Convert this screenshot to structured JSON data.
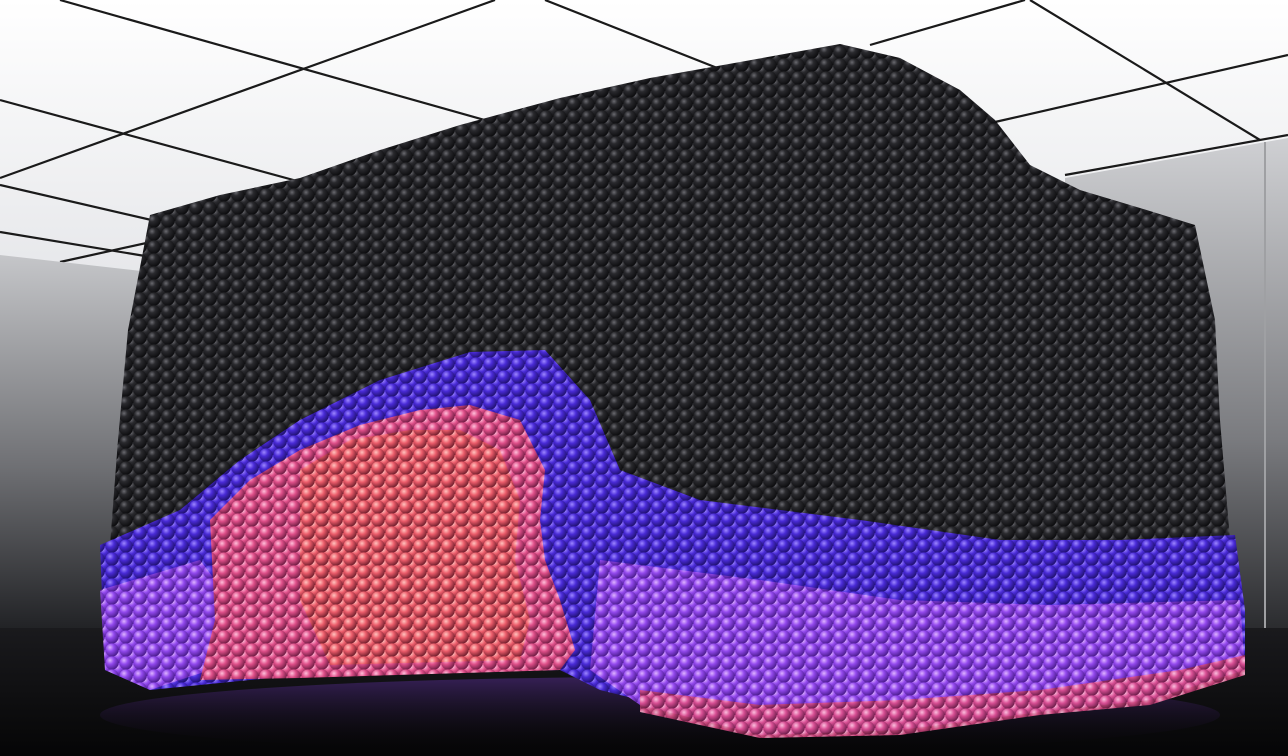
{
  "scene": {
    "subject": "particle-cube",
    "colors": {
      "ceiling": "#f2f2f4",
      "ceiling_grid": "#1a1a1a",
      "wall_light": "#b9babd",
      "wall_dark": "#2a2b2e",
      "floor": "#0b0b0d",
      "sphere_black": "#1a1a1c",
      "sphere_blue": "#4a2bd8",
      "sphere_violet": "#9a4cf0",
      "sphere_pink": "#e0508a",
      "sphere_coral": "#f06060"
    }
  }
}
